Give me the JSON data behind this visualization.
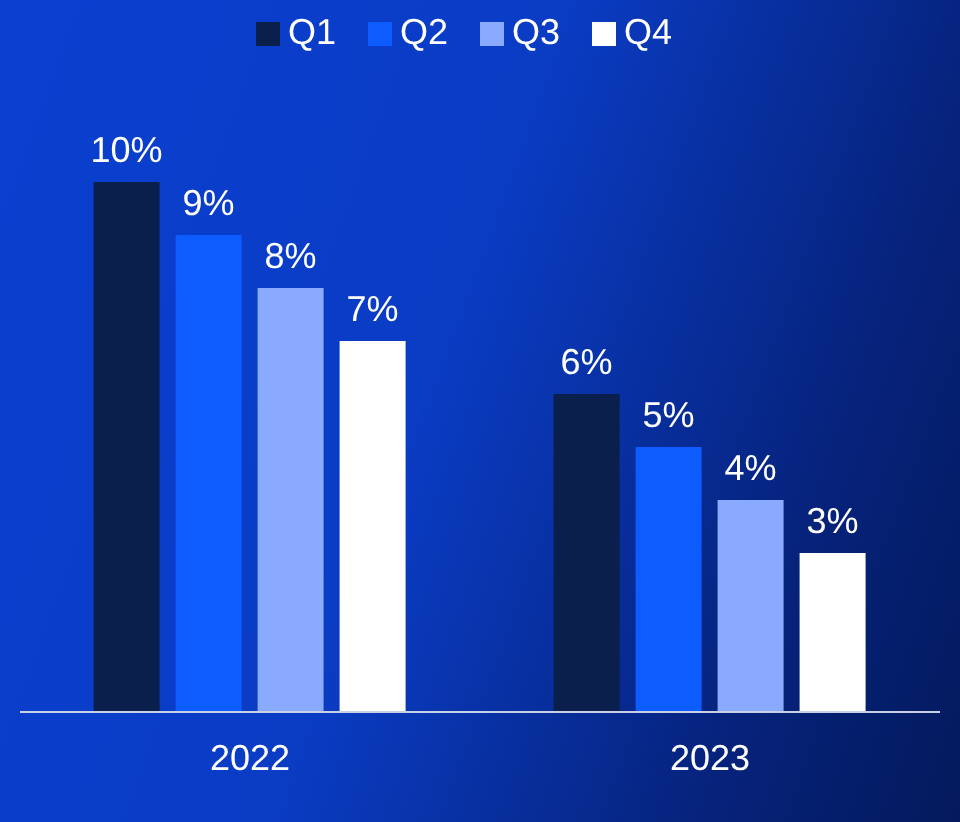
{
  "chart_data": {
    "type": "bar",
    "categories": [
      "2022",
      "2023"
    ],
    "legend": "top",
    "grid": false,
    "series": [
      {
        "name": "Q1",
        "color": "#0b1f4d",
        "values": [
          10,
          6
        ],
        "value_labels": [
          "10%",
          "6%"
        ]
      },
      {
        "name": "Q2",
        "color": "#0d5cff",
        "values": [
          9,
          5
        ],
        "value_labels": [
          "9%",
          "5%"
        ]
      },
      {
        "name": "Q3",
        "color": "#8aaaff",
        "values": [
          8,
          4
        ],
        "value_labels": [
          "8%",
          "4%"
        ]
      },
      {
        "name": "Q4",
        "color": "#ffffff",
        "values": [
          7,
          3
        ],
        "value_labels": [
          "7%",
          "3%"
        ]
      }
    ]
  }
}
